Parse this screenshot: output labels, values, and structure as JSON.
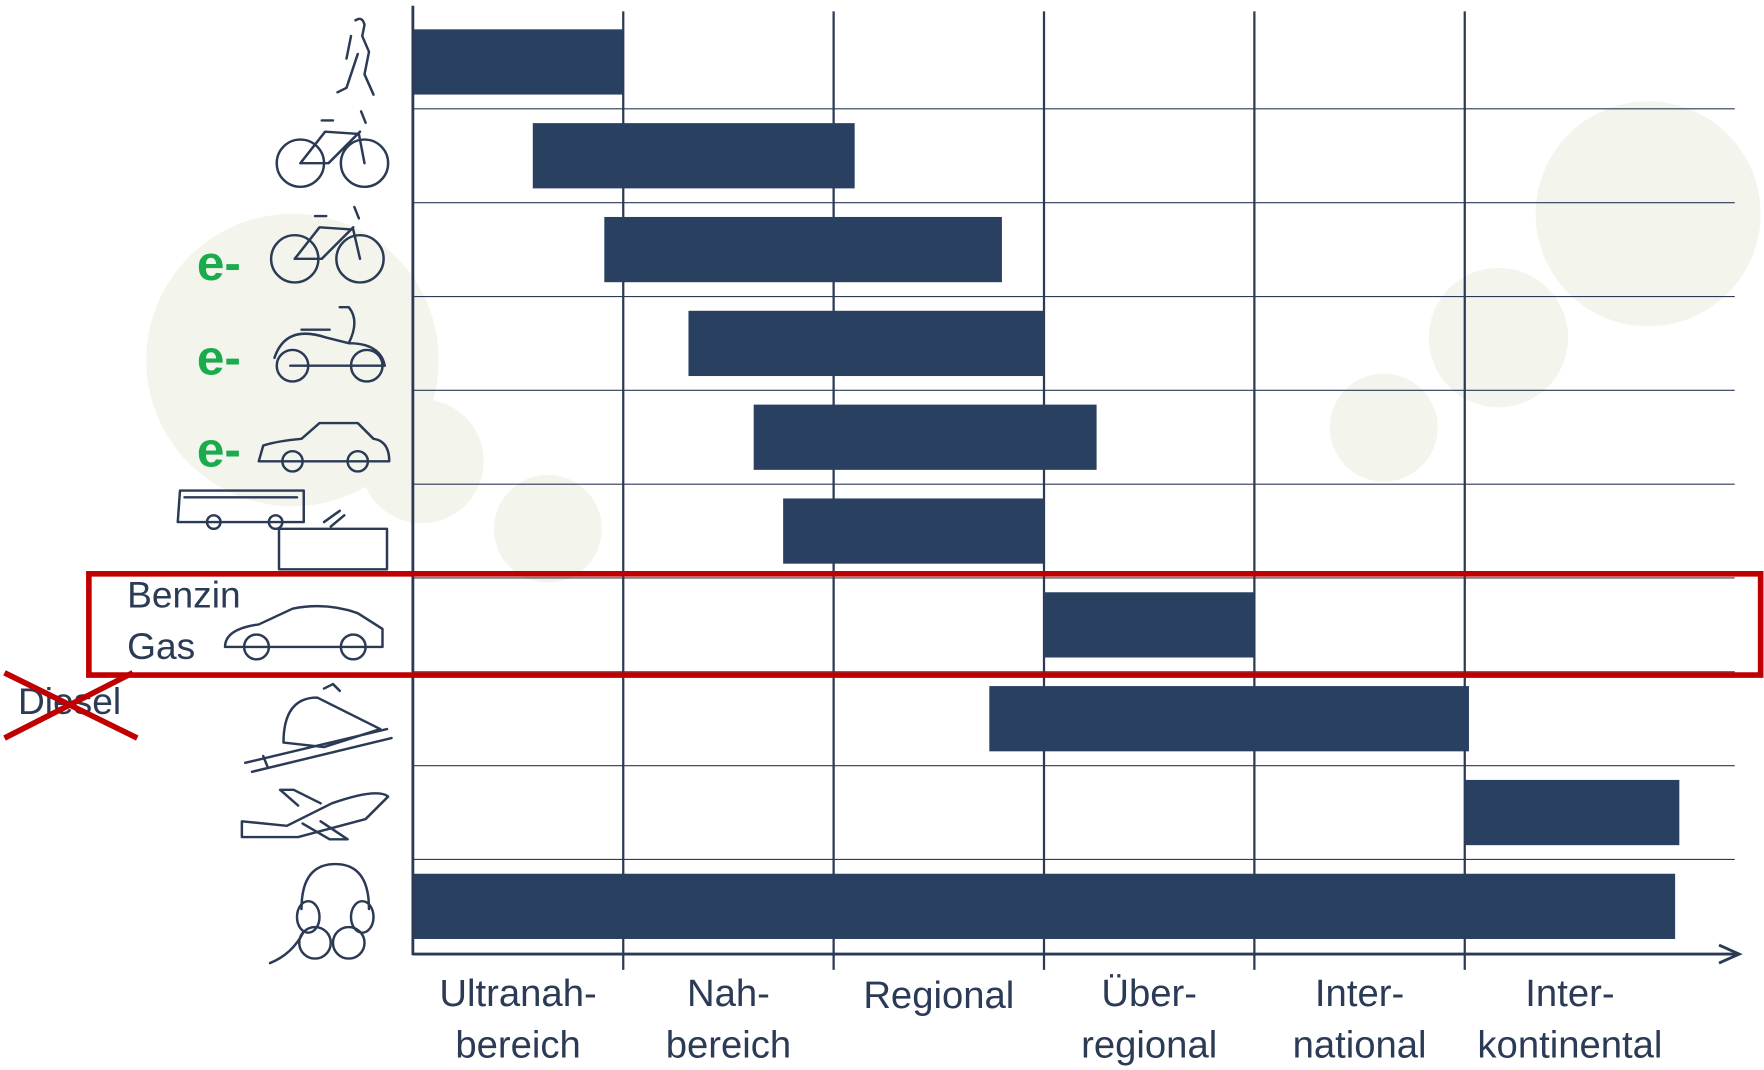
{
  "chart_data": {
    "type": "range-bar",
    "categories": [
      [
        "Ultranah-",
        "bereich"
      ],
      [
        "Nah-",
        "bereich"
      ],
      [
        "Regional"
      ],
      [
        "Über-",
        "regional"
      ],
      [
        "Inter-",
        "national"
      ],
      [
        "Inter-",
        "kontinental"
      ]
    ],
    "xlim": [
      0,
      6
    ],
    "starts": [
      0,
      0.57,
      0.91,
      1.31,
      1.62,
      1.76,
      3.0,
      2.74,
      5.0,
      0
    ],
    "ends": [
      1.0,
      2.1,
      2.8,
      3.0,
      3.25,
      3.0,
      4.0,
      5.02,
      6.02,
      6.0
    ],
    "color": "#2a4060",
    "grid": true,
    "labels": {
      "e": [
        "e-",
        "e-",
        "e-"
      ],
      "benzin": "Benzin",
      "gas": "Gas",
      "diesel": "Diesel"
    }
  }
}
